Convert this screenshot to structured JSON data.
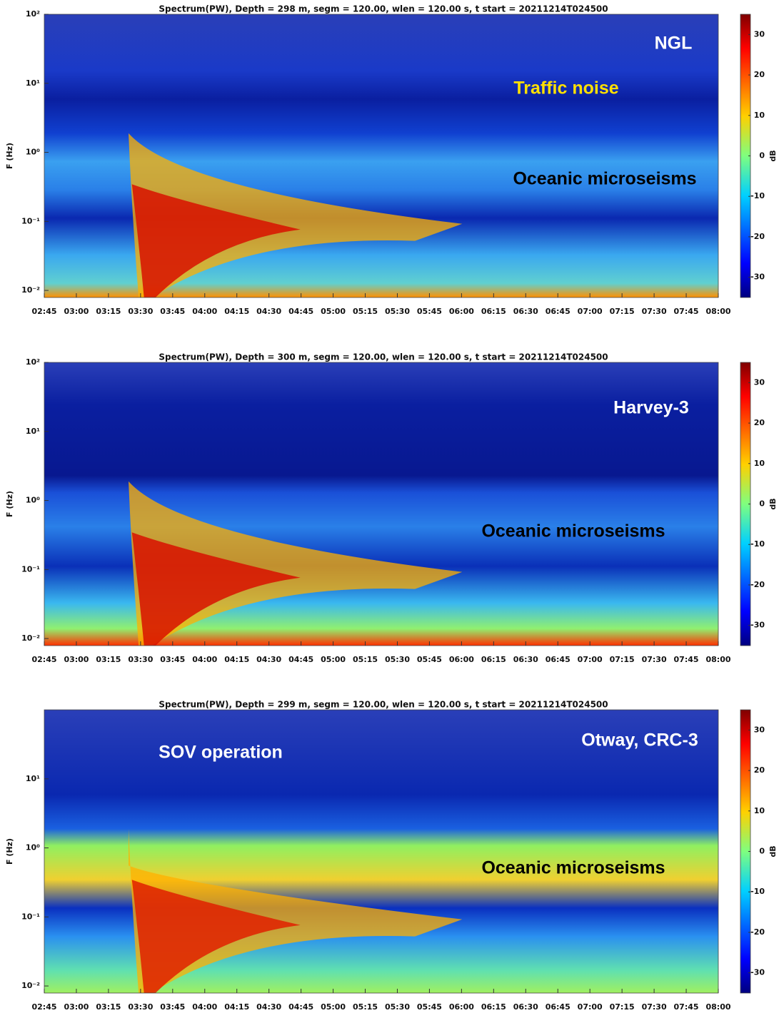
{
  "chart_data": [
    {
      "type": "spectrogram",
      "title": "Spectrum(PW), Depth =  298 m, segm = 120.00, wlen = 120.00 s, t start = 20211214T024500",
      "ylabel": "F (Hz)",
      "log_y": true,
      "xlim": [
        165,
        480
      ],
      "xticks": [
        {
          "value": 165,
          "label": "02:45"
        },
        {
          "value": 180,
          "label": "03:00"
        },
        {
          "value": 195,
          "label": "03:15"
        },
        {
          "value": 210,
          "label": "03:30"
        },
        {
          "value": 225,
          "label": "03:45"
        },
        {
          "value": 240,
          "label": "04:00"
        },
        {
          "value": 255,
          "label": "04:15"
        },
        {
          "value": 270,
          "label": "04:30"
        },
        {
          "value": 285,
          "label": "04:45"
        },
        {
          "value": 300,
          "label": "05:00"
        },
        {
          "value": 315,
          "label": "05:15"
        },
        {
          "value": 330,
          "label": "05:30"
        },
        {
          "value": 345,
          "label": "05:45"
        },
        {
          "value": 360,
          "label": "06:00"
        },
        {
          "value": 375,
          "label": "06:15"
        },
        {
          "value": 390,
          "label": "06:30"
        },
        {
          "value": 405,
          "label": "06:45"
        },
        {
          "value": 420,
          "label": "07:00"
        },
        {
          "value": 435,
          "label": "07:15"
        },
        {
          "value": 450,
          "label": "07:30"
        },
        {
          "value": 465,
          "label": "07:45"
        },
        {
          "value": 480,
          "label": "08:00"
        }
      ],
      "ylim": [
        0.0079,
        100
      ],
      "yticks": [
        {
          "value": 100,
          "label": "10²"
        },
        {
          "value": 10,
          "label": "10¹"
        },
        {
          "value": 1,
          "label": "10⁰"
        },
        {
          "value": 0.1,
          "label": "10⁻¹"
        },
        {
          "value": 0.01,
          "label": "10⁻²"
        }
      ],
      "colorbar": {
        "label": "dB",
        "clim": [
          -35,
          35
        ],
        "ticks": [
          30,
          20,
          10,
          0,
          -10,
          -20,
          -30
        ]
      },
      "annotations": [
        {
          "text": "NGL",
          "color": "#ffffff"
        },
        {
          "text": "Traffic noise",
          "color": "#ffe000"
        },
        {
          "text": "Oceanic microseisms",
          "color": "#000000"
        }
      ]
    },
    {
      "type": "spectrogram",
      "title": "Spectrum(PW), Depth =  300 m, segm = 120.00, wlen = 120.00 s, t start = 20211214T024500",
      "ylabel": "F (Hz)",
      "log_y": true,
      "xlim": [
        165,
        480
      ],
      "xticks": [
        {
          "value": 165,
          "label": "02:45"
        },
        {
          "value": 180,
          "label": "03:00"
        },
        {
          "value": 195,
          "label": "03:15"
        },
        {
          "value": 210,
          "label": "03:30"
        },
        {
          "value": 225,
          "label": "03:45"
        },
        {
          "value": 240,
          "label": "04:00"
        },
        {
          "value": 255,
          "label": "04:15"
        },
        {
          "value": 270,
          "label": "04:30"
        },
        {
          "value": 285,
          "label": "04:45"
        },
        {
          "value": 300,
          "label": "05:00"
        },
        {
          "value": 315,
          "label": "05:15"
        },
        {
          "value": 330,
          "label": "05:30"
        },
        {
          "value": 345,
          "label": "05:45"
        },
        {
          "value": 360,
          "label": "06:00"
        },
        {
          "value": 375,
          "label": "06:15"
        },
        {
          "value": 390,
          "label": "06:30"
        },
        {
          "value": 405,
          "label": "06:45"
        },
        {
          "value": 420,
          "label": "07:00"
        },
        {
          "value": 435,
          "label": "07:15"
        },
        {
          "value": 450,
          "label": "07:30"
        },
        {
          "value": 465,
          "label": "07:45"
        },
        {
          "value": 480,
          "label": "08:00"
        }
      ],
      "ylim": [
        0.0079,
        100
      ],
      "yticks": [
        {
          "value": 100,
          "label": "10²"
        },
        {
          "value": 10,
          "label": "10¹"
        },
        {
          "value": 1,
          "label": "10⁰"
        },
        {
          "value": 0.1,
          "label": "10⁻¹"
        },
        {
          "value": 0.01,
          "label": "10⁻²"
        }
      ],
      "colorbar": {
        "label": "dB",
        "clim": [
          -35,
          35
        ],
        "ticks": [
          30,
          20,
          10,
          0,
          -10,
          -20,
          -30
        ]
      },
      "annotations": [
        {
          "text": "Harvey-3",
          "color": "#ffffff"
        },
        {
          "text": "Oceanic microseisms",
          "color": "#000000"
        }
      ]
    },
    {
      "type": "spectrogram",
      "title": "Spectrum(PW), Depth =  299 m, segm = 120.00, wlen = 120.00 s, t start = 20211214T024500",
      "ylabel": "F (Hz)",
      "log_y": true,
      "xlim": [
        165,
        480
      ],
      "xticks": [
        {
          "value": 165,
          "label": "02:45"
        },
        {
          "value": 180,
          "label": "03:00"
        },
        {
          "value": 195,
          "label": "03:15"
        },
        {
          "value": 210,
          "label": "03:30"
        },
        {
          "value": 225,
          "label": "03:45"
        },
        {
          "value": 240,
          "label": "04:00"
        },
        {
          "value": 255,
          "label": "04:15"
        },
        {
          "value": 270,
          "label": "04:30"
        },
        {
          "value": 285,
          "label": "04:45"
        },
        {
          "value": 300,
          "label": "05:00"
        },
        {
          "value": 315,
          "label": "05:15"
        },
        {
          "value": 330,
          "label": "05:30"
        },
        {
          "value": 345,
          "label": "05:45"
        },
        {
          "value": 360,
          "label": "06:00"
        },
        {
          "value": 375,
          "label": "06:15"
        },
        {
          "value": 390,
          "label": "06:30"
        },
        {
          "value": 405,
          "label": "06:45"
        },
        {
          "value": 420,
          "label": "07:00"
        },
        {
          "value": 435,
          "label": "07:15"
        },
        {
          "value": 450,
          "label": "07:30"
        },
        {
          "value": 465,
          "label": "07:45"
        },
        {
          "value": 480,
          "label": "08:00"
        }
      ],
      "ylim": [
        0.0079,
        100
      ],
      "yticks": [
        {
          "value": 10,
          "label": "10¹"
        },
        {
          "value": 1,
          "label": "10⁰"
        },
        {
          "value": 0.1,
          "label": "10⁻¹"
        },
        {
          "value": 0.01,
          "label": "10⁻²"
        }
      ],
      "colorbar": {
        "label": "dB",
        "clim": [
          -35,
          35
        ],
        "ticks": [
          30,
          20,
          10,
          0,
          -10,
          -20,
          -30
        ]
      },
      "annotations": [
        {
          "text": "SOV operation",
          "color": "#ffffff"
        },
        {
          "text": "Otway, CRC-3",
          "color": "#ffffff"
        },
        {
          "text": "Oceanic microseisms",
          "color": "#000000"
        }
      ]
    }
  ]
}
